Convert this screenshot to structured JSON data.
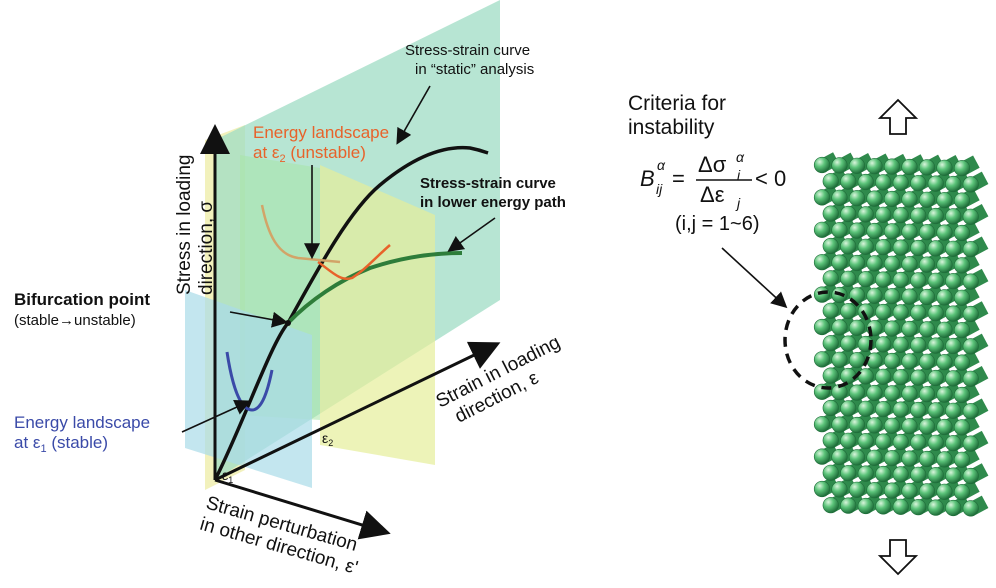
{
  "diagram": {
    "curves": {
      "static": {
        "line1": "Stress-strain curve",
        "line2": "in “static” analysis"
      },
      "lower": {
        "line1": "Stress-strain curve",
        "line2": "in lower energy path"
      }
    },
    "energy_unstable": {
      "line1": "Energy landscape",
      "line2_prefix": "at ε",
      "line2_sub": "2",
      "line2_suffix": " (unstable)"
    },
    "energy_stable": {
      "line1": "Energy landscape",
      "line2_prefix": "at ε",
      "line2_sub": "1",
      "line2_suffix": " (stable)"
    },
    "bifurcation": {
      "line1": "Bifurcation point",
      "line2": "(stable→unstable)"
    },
    "axes": {
      "stress": {
        "line1": "Stress in loading",
        "line2": "direction, σ"
      },
      "strain": {
        "line1": "Strain in loading",
        "line2": "direction, ε"
      },
      "perturbation": {
        "line1": "Strain perturbation",
        "line2": "in other direction, ε'"
      },
      "eps1": {
        "base": "ε",
        "sub": "1"
      },
      "eps2": {
        "base": "ε",
        "sub": "2"
      }
    },
    "criteria": {
      "title1": "Criteria for",
      "title2": "instability",
      "B": "B",
      "B_sup": "α",
      "B_sub": "ij",
      "equals": "=",
      "num": "Δσ",
      "num_sub": "i",
      "num_sup": "α",
      "den": "Δε",
      "den_sub": "j",
      "lt": "< 0",
      "range": "(i,j  = 1~6)"
    },
    "colors": {
      "plane_loading": "#9fdcc4",
      "plane_yellow": "#f0eeb0",
      "plane_green": "#a8e6a8",
      "plane_blue": "#a9dbe8",
      "curve_static": "#111111",
      "curve_lower": "#2e7d3a",
      "energy_unstable_line": "#d2a468",
      "energy_unstable_dip": "#e8622a",
      "energy_stable": "#3a4aa8",
      "label_unstable": "#e8622a",
      "label_stable": "#3a4aa8",
      "atoms": "#3aa05a"
    }
  }
}
